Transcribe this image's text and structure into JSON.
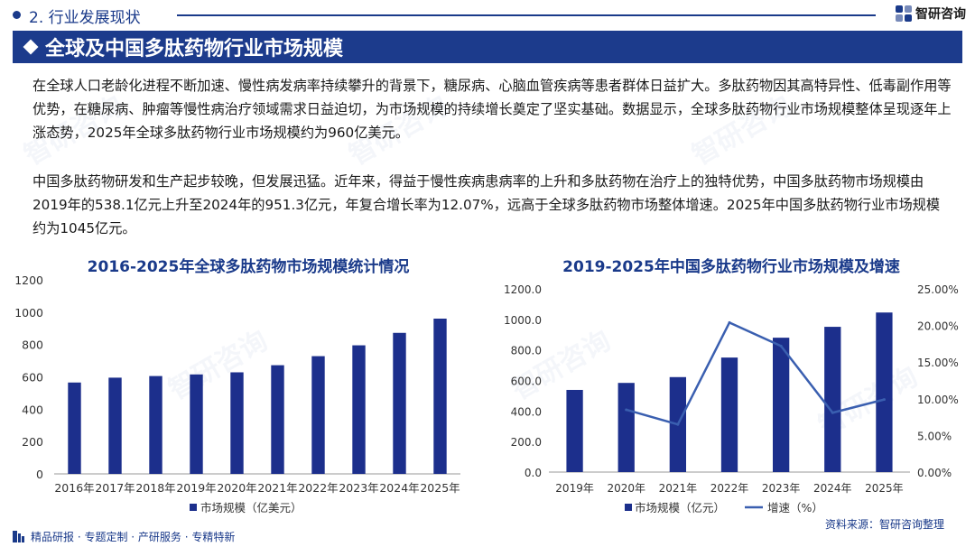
{
  "header": {
    "section": "2. 行业发展现状",
    "brand": "智研咨询",
    "title": "全球及中国多肽药物行业市场规模"
  },
  "paragraphs": [
    "在全球人口老龄化进程不断加速、慢性病发病率持续攀升的背景下，糖尿病、心脑血管疾病等患者群体日益扩大。多肽药物因其高特异性、低毒副作用等优势，在糖尿病、肿瘤等慢性病治疗领域需求日益迫切，为市场规模的持续增长奠定了坚实基础。数据显示，全球多肽药物行业市场规模整体呈现逐年上涨态势，2025年全球多肽药物行业市场规模约为960亿美元。",
    "中国多肽药物研发和生产起步较晚，但发展迅猛。近年来，得益于慢性疾病患病率的上升和多肽药物在治疗上的独特优势，中国多肽药物市场规模由2019年的538.1亿元上升至2024年的951.3亿元，年复合增长率为12.07%，远高于全球多肽药物市场整体增速。2025年中国多肽药物行业市场规模约为1045亿元。"
  ],
  "chart_data": [
    {
      "type": "bar",
      "title": "2016-2025年全球多肽药物市场规模统计情况",
      "categories": [
        "2016年",
        "2017年",
        "2018年",
        "2019年",
        "2020年",
        "2021年",
        "2022年",
        "2023年",
        "2024年",
        "2025年"
      ],
      "series": [
        {
          "name": "市场规模（亿美元）",
          "values": [
            565,
            595,
            605,
            615,
            628,
            672,
            728,
            795,
            872,
            960
          ]
        }
      ],
      "ylim": [
        0,
        1200
      ],
      "yticks": [
        "0",
        "200",
        "400",
        "600",
        "800",
        "1000",
        "1200"
      ],
      "color": "#1c2f8c"
    },
    {
      "type": "bar+line",
      "title": "2019-2025年中国多肽药物行业市场规模及增速",
      "categories": [
        "2019年",
        "2020年",
        "2021年",
        "2022年",
        "2023年",
        "2024年",
        "2025年"
      ],
      "series": [
        {
          "name": "市场规模（亿元）",
          "type": "bar",
          "axis": "left",
          "values": [
            538.1,
            584,
            622,
            750,
            880,
            951.3,
            1045
          ]
        },
        {
          "name": "增速（%）",
          "type": "line",
          "axis": "right",
          "values": [
            null,
            8.5,
            6.5,
            20.4,
            17.2,
            8.1,
            9.9
          ]
        }
      ],
      "ylim_left": [
        0,
        1200
      ],
      "yticks_left": [
        "0.0",
        "200.0",
        "400.0",
        "600.0",
        "800.0",
        "1000.0",
        "1200.0"
      ],
      "ylim_right": [
        0,
        25
      ],
      "yticks_right": [
        "0.00%",
        "5.00%",
        "10.00%",
        "15.00%",
        "20.00%",
        "25.00%"
      ],
      "bar_color": "#1c2f8c",
      "line_color": "#3a5fb0"
    }
  ],
  "source": "资料来源：智研咨询整理",
  "footer": "精品研报 · 专题定制 · 产研服务 · 专精特新"
}
